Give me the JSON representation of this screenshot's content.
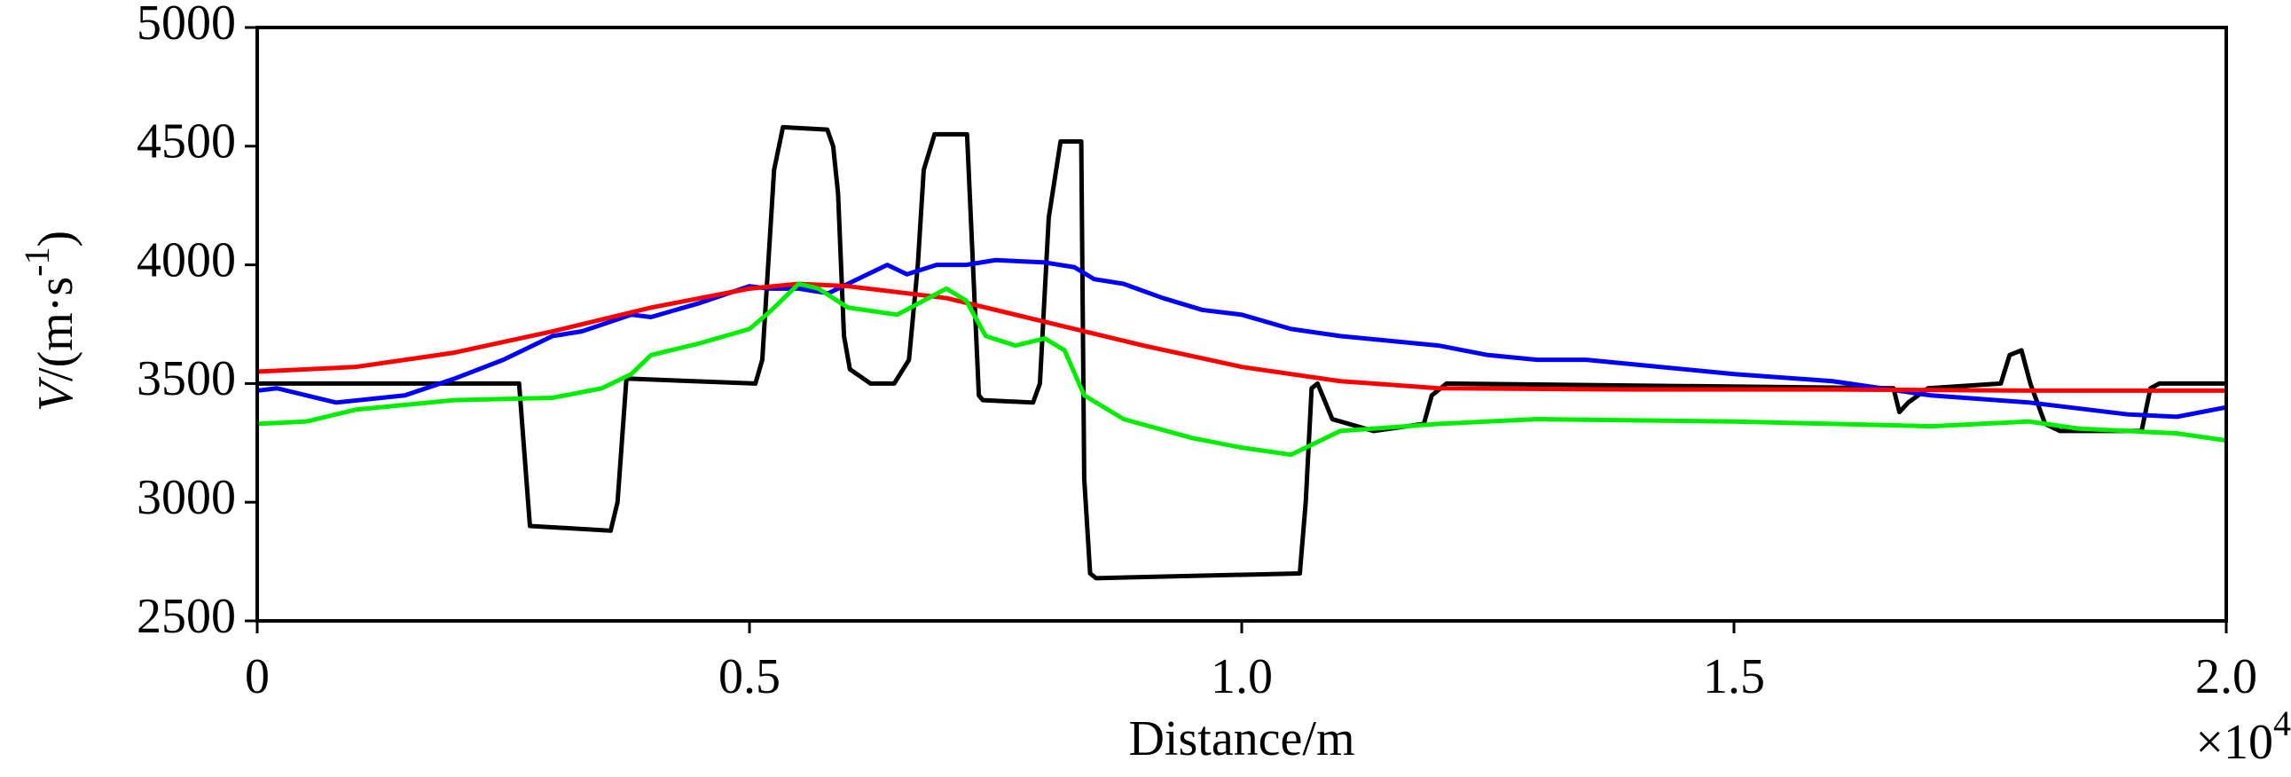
{
  "chart_data": {
    "type": "line",
    "xlabel": "Distance/m",
    "x_multiplier": "×10",
    "x_multiplier_exp": "4",
    "ylabel": [
      "V",
      "/(m·s",
      "-1",
      ")"
    ],
    "xlim": [
      0,
      2
    ],
    "xticks": [
      0,
      0.5,
      {
        "value": 1,
        "label": "1.0"
      },
      1.5,
      {
        "value": 2,
        "label": "2.0"
      }
    ],
    "ylim": [
      2500,
      5000
    ],
    "yticks": [
      2500,
      3000,
      3500,
      4000,
      4500,
      5000
    ],
    "series": [
      {
        "color": "#000000",
        "x": [
          0,
          0.266,
          0.277,
          0.359,
          0.366,
          0.375,
          0.38,
          0.506,
          0.513,
          0.525,
          0.534,
          0.579,
          0.585,
          0.59,
          0.596,
          0.602,
          0.623,
          0.647,
          0.662,
          0.671,
          0.677,
          0.688,
          0.721,
          0.727,
          0.733,
          0.737,
          0.788,
          0.795,
          0.804,
          0.816,
          0.837,
          0.84,
          0.846,
          0.852,
          1.059,
          1.065,
          1.071,
          1.077,
          1.092,
          1.134,
          1.185,
          1.193,
          1.208,
          1.662,
          1.668,
          1.677,
          1.697,
          1.771,
          1.78,
          1.792,
          1.801,
          1.816,
          1.831,
          1.914,
          1.923,
          1.932,
          2.0
        ],
        "values": [
          3500,
          3500,
          2900,
          2880,
          3000,
          3520,
          3520,
          3500,
          3600,
          4400,
          4580,
          4570,
          4500,
          4300,
          3700,
          3560,
          3500,
          3500,
          3600,
          4000,
          4400,
          4550,
          4550,
          4000,
          3450,
          3430,
          3420,
          3500,
          4200,
          4520,
          4520,
          3100,
          2700,
          2680,
          2700,
          3000,
          3480,
          3500,
          3350,
          3300,
          3330,
          3450,
          3500,
          3480,
          3380,
          3420,
          3480,
          3500,
          3620,
          3640,
          3500,
          3330,
          3300,
          3300,
          3480,
          3500,
          3500
        ]
      },
      {
        "color": "#0000ff",
        "x": [
          0,
          0.02,
          0.08,
          0.15,
          0.2,
          0.25,
          0.3,
          0.33,
          0.38,
          0.4,
          0.45,
          0.5,
          0.52,
          0.55,
          0.58,
          0.62,
          0.64,
          0.66,
          0.69,
          0.72,
          0.75,
          0.8,
          0.83,
          0.85,
          0.88,
          0.92,
          0.96,
          1.0,
          1.05,
          1.1,
          1.2,
          1.25,
          1.3,
          1.35,
          1.4,
          1.5,
          1.6,
          1.65,
          1.7,
          1.8,
          1.9,
          1.95,
          2.0
        ],
        "values": [
          3470,
          3480,
          3420,
          3450,
          3520,
          3600,
          3700,
          3720,
          3790,
          3780,
          3840,
          3910,
          3900,
          3900,
          3880,
          3960,
          4000,
          3960,
          4000,
          4000,
          4020,
          4010,
          3990,
          3940,
          3920,
          3860,
          3810,
          3790,
          3730,
          3700,
          3660,
          3620,
          3600,
          3600,
          3580,
          3540,
          3510,
          3480,
          3450,
          3420,
          3370,
          3360,
          3400
        ]
      },
      {
        "color": "#ff0000",
        "x": [
          0,
          0.1,
          0.2,
          0.3,
          0.4,
          0.5,
          0.55,
          0.6,
          0.7,
          0.8,
          0.9,
          1.0,
          1.1,
          1.2,
          1.4,
          1.6,
          1.8,
          2.0
        ],
        "values": [
          3550,
          3570,
          3630,
          3720,
          3820,
          3900,
          3920,
          3910,
          3860,
          3760,
          3660,
          3570,
          3510,
          3480,
          3475,
          3475,
          3470,
          3470
        ]
      },
      {
        "color": "#00ee00",
        "x": [
          0,
          0.05,
          0.1,
          0.2,
          0.3,
          0.35,
          0.38,
          0.4,
          0.45,
          0.5,
          0.52,
          0.55,
          0.57,
          0.6,
          0.65,
          0.7,
          0.72,
          0.74,
          0.77,
          0.8,
          0.82,
          0.84,
          0.88,
          0.95,
          1.0,
          1.05,
          1.08,
          1.1,
          1.2,
          1.3,
          1.5,
          1.6,
          1.7,
          1.8,
          1.85,
          1.95,
          2.0
        ],
        "values": [
          3330,
          3340,
          3390,
          3430,
          3440,
          3480,
          3540,
          3620,
          3670,
          3730,
          3800,
          3920,
          3900,
          3820,
          3790,
          3900,
          3850,
          3700,
          3660,
          3690,
          3640,
          3450,
          3350,
          3270,
          3230,
          3200,
          3260,
          3300,
          3330,
          3350,
          3340,
          3330,
          3320,
          3340,
          3310,
          3290,
          3260
        ]
      }
    ]
  }
}
